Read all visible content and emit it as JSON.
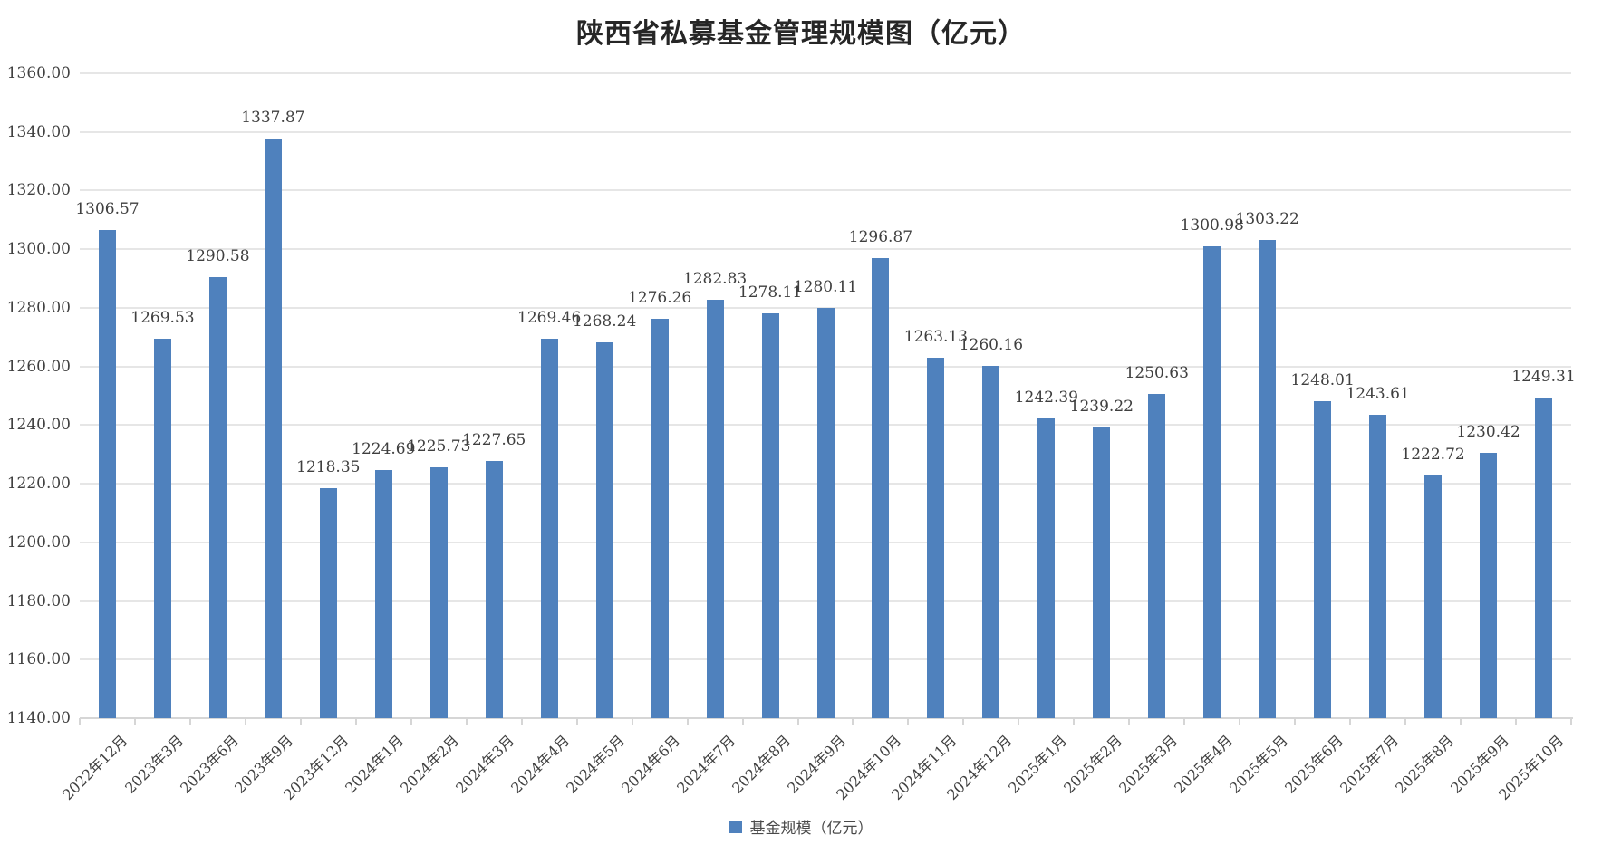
{
  "chart_data": {
    "type": "bar",
    "title": "陕西省私募基金管理规模图（亿元）",
    "legend": "基金规模（亿元）",
    "categories": [
      "2022年12月",
      "2023年3月",
      "2023年6月",
      "2023年9月",
      "2023年12月",
      "2024年1月",
      "2024年2月",
      "2024年3月",
      "2024年4月",
      "2024年5月",
      "2024年6月",
      "2024年7月",
      "2024年8月",
      "2024年9月",
      "2024年10月",
      "2024年11月",
      "2024年12月",
      "2025年1月",
      "2025年2月",
      "2025年3月",
      "2025年4月",
      "2025年5月",
      "2025年6月",
      "2025年7月",
      "2025年8月",
      "2025年9月",
      "2025年10月"
    ],
    "values": [
      1306.57,
      1269.53,
      1290.58,
      1337.87,
      1218.35,
      1224.69,
      1225.73,
      1227.65,
      1269.46,
      1268.24,
      1276.26,
      1282.83,
      1278.11,
      1280.11,
      1296.87,
      1263.13,
      1260.16,
      1242.39,
      1239.22,
      1250.63,
      1300.98,
      1303.22,
      1248.01,
      1243.61,
      1222.72,
      1230.42,
      1249.31
    ],
    "ylim": [
      1140,
      1360
    ],
    "ytick_step": 20,
    "ytick_format_decimals": 2,
    "grid": true,
    "legend_position": "bottom",
    "bar_color": "#4f81bd",
    "xlabel": "",
    "ylabel": ""
  }
}
